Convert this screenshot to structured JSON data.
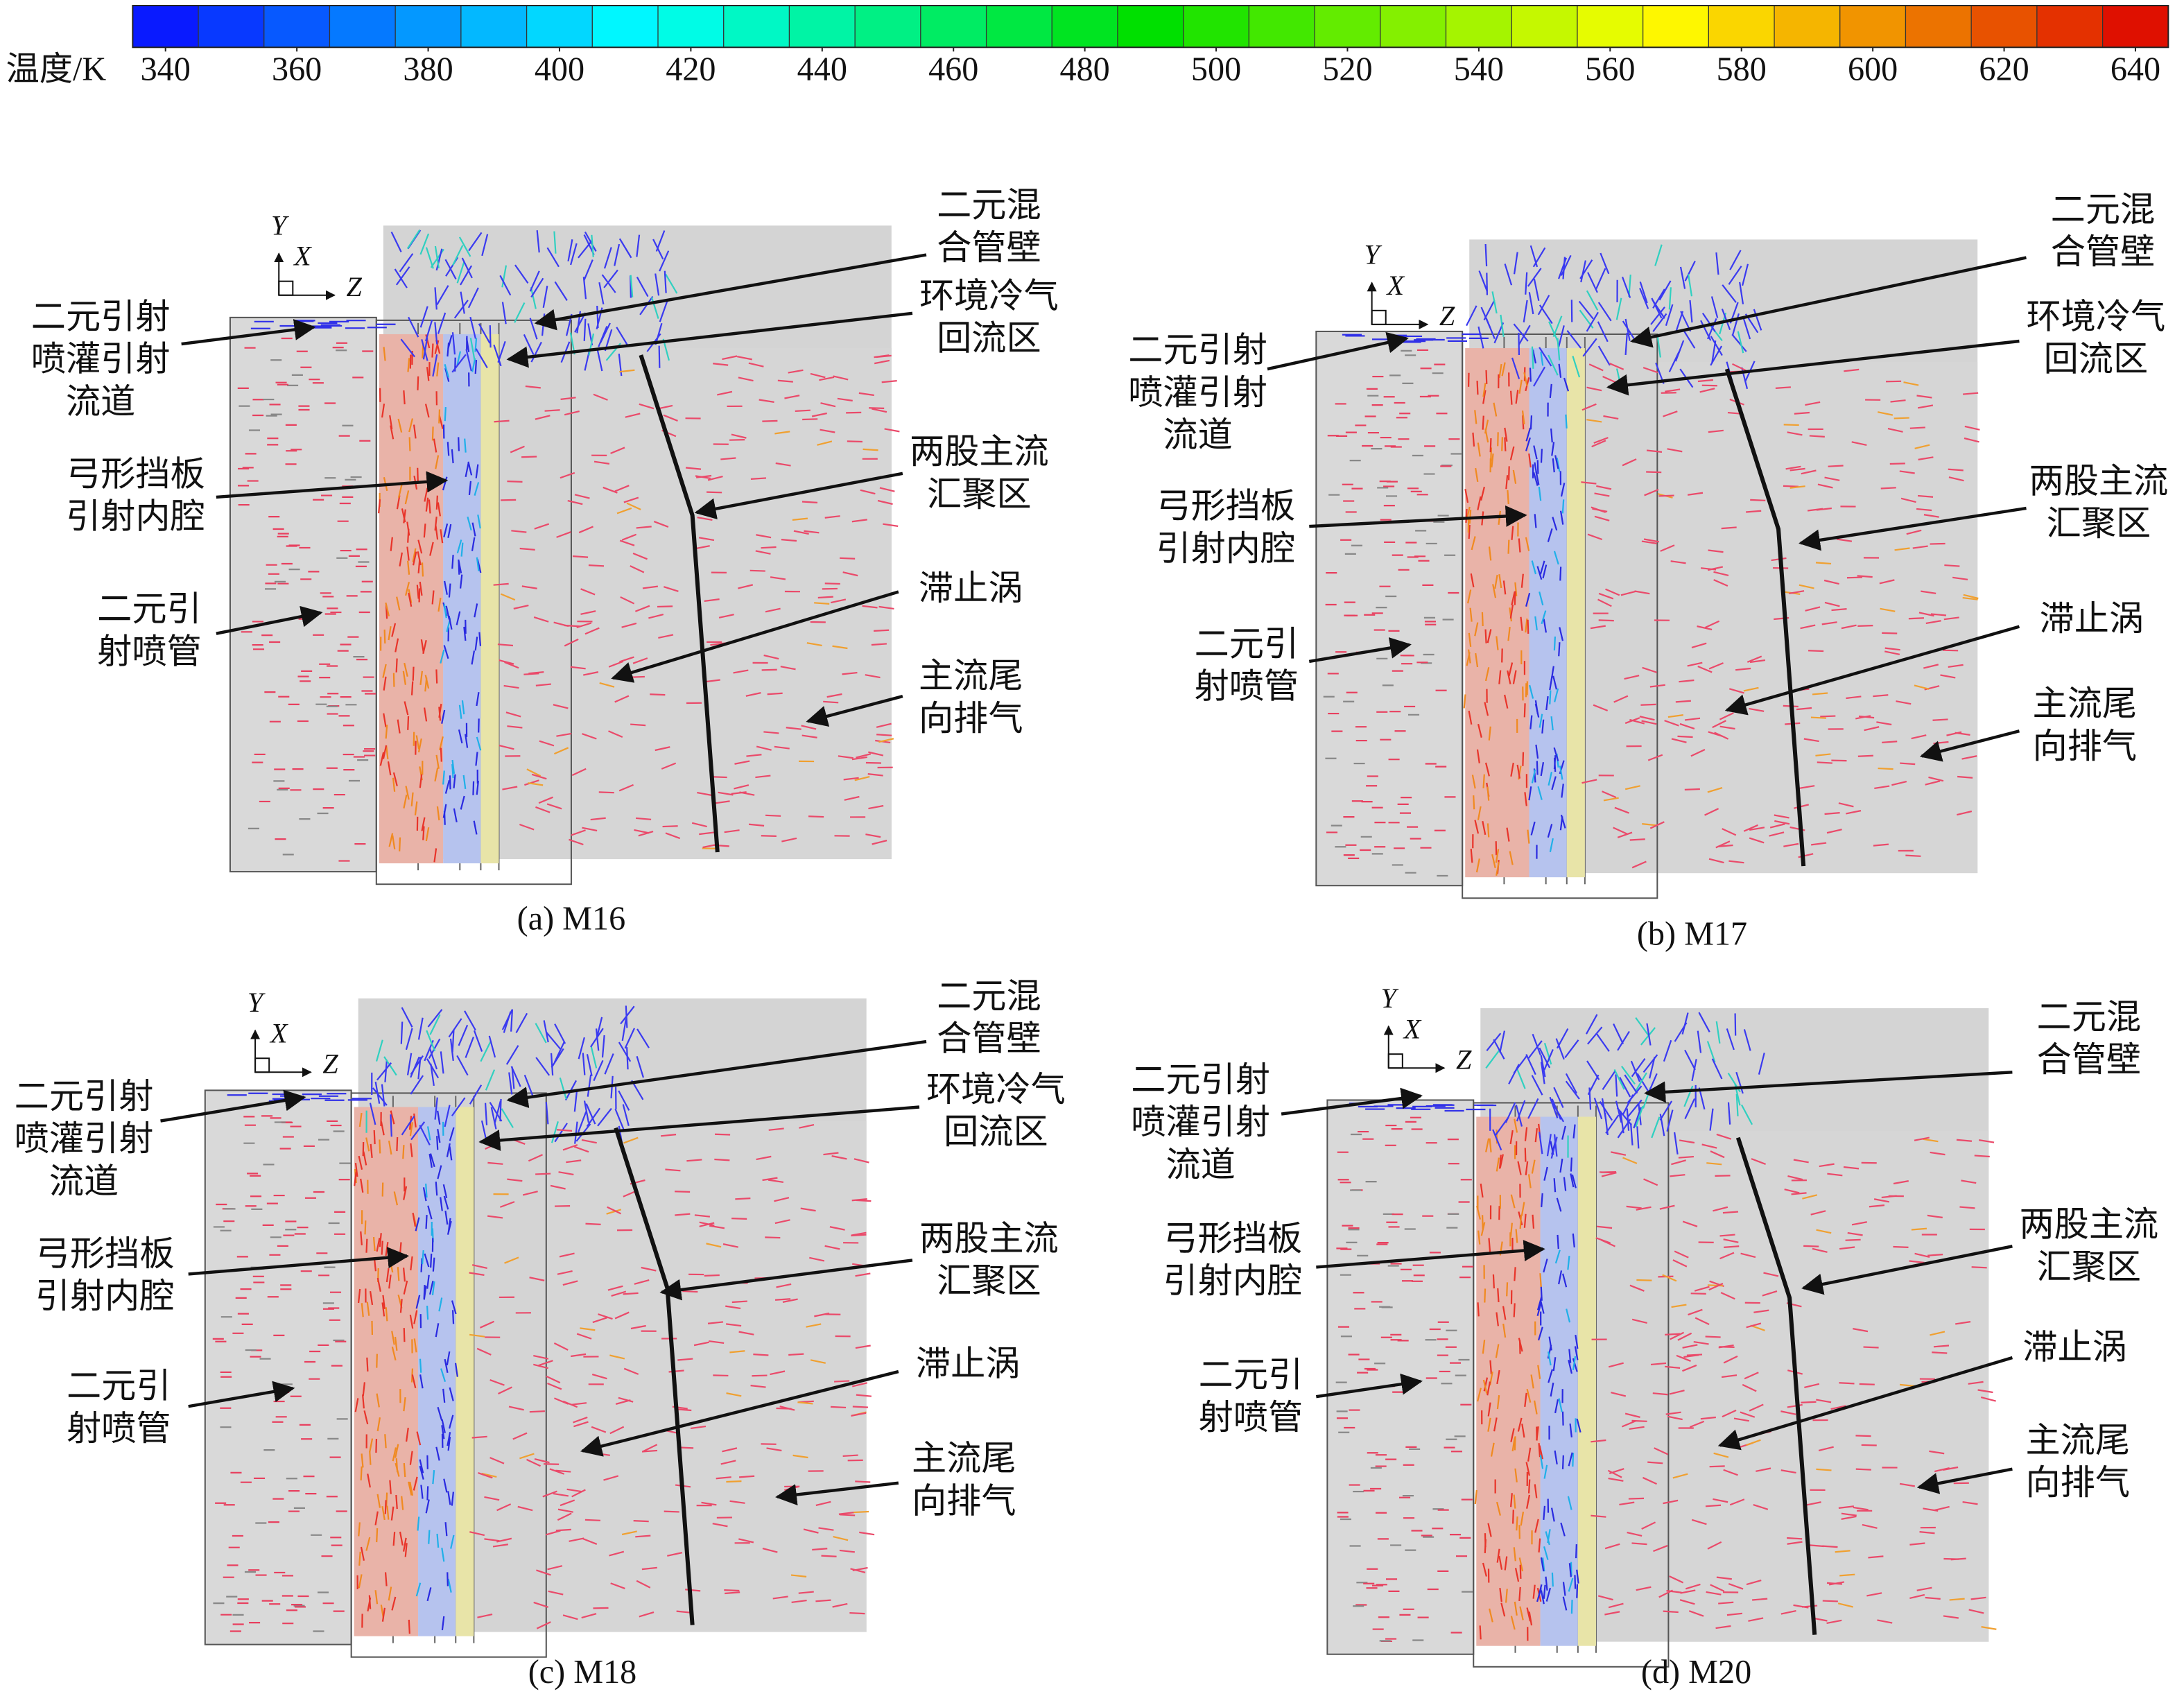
{
  "colorbar": {
    "label": "温度/K",
    "range": [
      335,
      645
    ],
    "ticks": [
      340,
      360,
      380,
      400,
      420,
      440,
      460,
      480,
      500,
      520,
      540,
      560,
      580,
      600,
      620,
      640
    ],
    "colors": [
      "#0a0aff",
      "#00ffff",
      "#00e000",
      "#ffff00",
      "#dd0000"
    ]
  },
  "panels": [
    {
      "caption": "(a) M16",
      "axes": {
        "y": "Y",
        "x": "X",
        "z": "Z"
      },
      "labels": [
        {
          "lines": [
            "二元混",
            "合管壁"
          ]
        },
        {
          "lines": [
            "环境冷气",
            "回流区"
          ]
        },
        {
          "lines": [
            "两股主流",
            "汇聚区"
          ]
        },
        {
          "lines": [
            "滞止涡"
          ]
        },
        {
          "lines": [
            "主流尾",
            "向排气"
          ]
        },
        {
          "lines": [
            "二元引射",
            "喷灌引射",
            "流道"
          ]
        },
        {
          "lines": [
            "弓形挡板",
            "引射内腔"
          ]
        },
        {
          "lines": [
            "二元引",
            "射喷管"
          ]
        }
      ]
    },
    {
      "caption": "(b) M17",
      "axes": {
        "y": "Y",
        "x": "X",
        "z": "Z"
      },
      "labels": [
        {
          "lines": [
            "二元混",
            "合管壁"
          ]
        },
        {
          "lines": [
            "环境冷气",
            "回流区"
          ]
        },
        {
          "lines": [
            "两股主流",
            "汇聚区"
          ]
        },
        {
          "lines": [
            "滞止涡"
          ]
        },
        {
          "lines": [
            "主流尾",
            "向排气"
          ]
        },
        {
          "lines": [
            "二元引射",
            "喷灌引射",
            "流道"
          ]
        },
        {
          "lines": [
            "弓形挡板",
            "引射内腔"
          ]
        },
        {
          "lines": [
            "二元引",
            "射喷管"
          ]
        }
      ]
    },
    {
      "caption": "(c) M18",
      "axes": {
        "y": "Y",
        "x": "X",
        "z": "Z"
      },
      "labels": [
        {
          "lines": [
            "二元混",
            "合管壁"
          ]
        },
        {
          "lines": [
            "环境冷气",
            "回流区"
          ]
        },
        {
          "lines": [
            "两股主流",
            "汇聚区"
          ]
        },
        {
          "lines": [
            "滞止涡"
          ]
        },
        {
          "lines": [
            "主流尾",
            "向排气"
          ]
        },
        {
          "lines": [
            "二元引射",
            "喷灌引射",
            "流道"
          ]
        },
        {
          "lines": [
            "弓形挡板",
            "引射内腔"
          ]
        },
        {
          "lines": [
            "二元引",
            "射喷管"
          ]
        }
      ]
    },
    {
      "caption": "(d) M20",
      "axes": {
        "y": "Y",
        "x": "X",
        "z": "Z"
      },
      "labels": [
        {
          "lines": [
            "二元混",
            "合管壁"
          ]
        },
        {
          "lines": [
            "两股主流",
            "汇聚区"
          ]
        },
        {
          "lines": [
            "滞止涡"
          ]
        },
        {
          "lines": [
            "主流尾",
            "向排气"
          ]
        },
        {
          "lines": [
            "二元引射",
            "喷灌引射",
            "流道"
          ]
        },
        {
          "lines": [
            "弓形挡板",
            "引射内腔"
          ]
        },
        {
          "lines": [
            "二元引",
            "射喷管"
          ]
        }
      ]
    }
  ]
}
